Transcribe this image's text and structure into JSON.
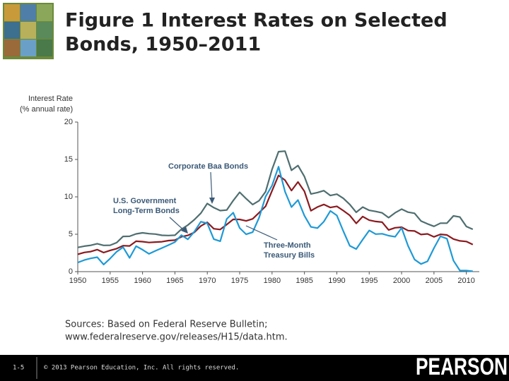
{
  "slide": {
    "title_lines": [
      "Figure 1  Interest Rates on Selected",
      "Bonds, 1950–2011"
    ],
    "sources_lines": [
      "Sources: Based on Federal Reserve Bulletin;",
      "www.federalreserve.gov/releases/H15/data.htm."
    ],
    "page_number": "1-5",
    "copyright": "© 2013 Pearson Education, Inc. All rights reserved.",
    "logo": "PEARSON"
  },
  "chart_data": {
    "type": "line",
    "ylabel_lines": [
      "Interest Rate",
      "(% annual rate)"
    ],
    "x": [
      1950,
      1951,
      1952,
      1953,
      1954,
      1955,
      1956,
      1957,
      1958,
      1959,
      1960,
      1961,
      1962,
      1963,
      1964,
      1965,
      1966,
      1967,
      1968,
      1969,
      1970,
      1971,
      1972,
      1973,
      1974,
      1975,
      1976,
      1977,
      1978,
      1979,
      1980,
      1981,
      1982,
      1983,
      1984,
      1985,
      1986,
      1987,
      1988,
      1989,
      1990,
      1991,
      1992,
      1993,
      1994,
      1995,
      1996,
      1997,
      1998,
      1999,
      2000,
      2001,
      2002,
      2003,
      2004,
      2005,
      2006,
      2007,
      2008,
      2009,
      2010,
      2011
    ],
    "xlim": [
      1950,
      2012
    ],
    "xticks": [
      1950,
      1955,
      1960,
      1965,
      1970,
      1975,
      1980,
      1985,
      1990,
      1995,
      2000,
      2005,
      2010
    ],
    "ylim": [
      0,
      20
    ],
    "yticks": [
      0,
      5,
      10,
      15,
      20
    ],
    "series": [
      {
        "color": "#4f6e70",
        "values": [
          3.24,
          3.41,
          3.52,
          3.74,
          3.51,
          3.53,
          3.88,
          4.71,
          4.73,
          5.05,
          5.19,
          5.08,
          5.02,
          4.86,
          4.83,
          4.87,
          5.67,
          6.23,
          6.94,
          7.81,
          9.11,
          8.56,
          8.16,
          8.24,
          9.5,
          10.61,
          9.75,
          8.97,
          9.49,
          10.69,
          13.67,
          16.04,
          16.11,
          13.55,
          14.19,
          12.72,
          10.39,
          10.58,
          10.83,
          10.18,
          10.36,
          9.8,
          8.98,
          7.93,
          8.63,
          8.2,
          8.05,
          7.86,
          7.22,
          7.87,
          8.36,
          7.95,
          7.8,
          6.77,
          6.39,
          6.06,
          6.48,
          6.48,
          7.45,
          7.3,
          6.04,
          5.66
        ]
      },
      {
        "color": "#8b1a1f",
        "values": [
          2.32,
          2.57,
          2.68,
          2.94,
          2.55,
          2.84,
          3.08,
          3.47,
          3.43,
          4.07,
          4.01,
          3.9,
          3.95,
          4.0,
          4.15,
          4.21,
          4.66,
          4.85,
          5.25,
          6.1,
          6.59,
          5.74,
          5.63,
          6.3,
          6.99,
          6.98,
          6.78,
          7.06,
          7.89,
          8.74,
          10.81,
          12.87,
          12.23,
          10.84,
          11.99,
          10.75,
          8.14,
          8.64,
          8.98,
          8.58,
          8.74,
          8.16,
          7.52,
          6.45,
          7.37,
          6.88,
          6.71,
          6.61,
          5.58,
          5.87,
          5.94,
          5.49,
          5.43,
          4.96,
          5.05,
          4.65,
          4.99,
          4.91,
          4.36,
          4.11,
          4.03,
          3.62
        ]
      },
      {
        "color": "#1e9ad6",
        "values": [
          1.22,
          1.55,
          1.77,
          1.93,
          0.95,
          1.75,
          2.66,
          3.27,
          1.84,
          3.41,
          2.93,
          2.38,
          2.78,
          3.16,
          3.55,
          3.95,
          4.88,
          4.32,
          5.34,
          6.68,
          6.46,
          4.35,
          4.07,
          7.04,
          7.89,
          5.84,
          4.99,
          5.27,
          7.22,
          10.04,
          11.51,
          14.03,
          10.69,
          8.63,
          9.58,
          7.48,
          5.98,
          5.82,
          6.69,
          8.12,
          7.51,
          5.42,
          3.45,
          3.02,
          4.29,
          5.51,
          5.02,
          5.07,
          4.81,
          4.66,
          5.85,
          3.45,
          1.62,
          1.02,
          1.38,
          3.16,
          4.73,
          4.41,
          1.48,
          0.15,
          0.14,
          0.05
        ]
      }
    ],
    "annotations": [
      {
        "lines": [
          "Corporate Baa Bonds"
        ]
      },
      {
        "lines": [
          "U.S. Government",
          "Long-Term Bonds"
        ]
      },
      {
        "lines": [
          "Three-Month",
          "Treasury Bills"
        ]
      }
    ]
  }
}
